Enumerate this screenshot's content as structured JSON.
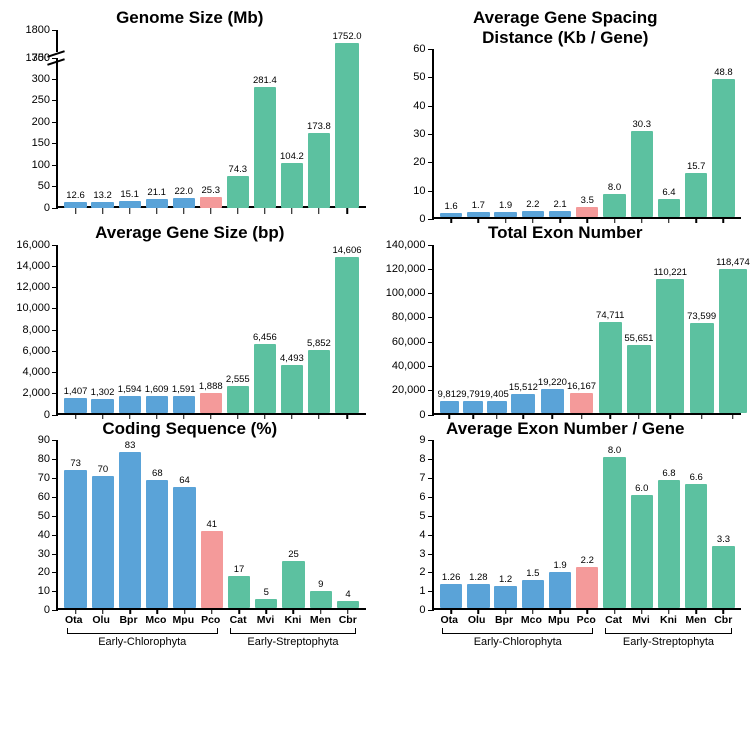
{
  "colors": {
    "blue": "#5aa3d8",
    "pink": "#f49a9a",
    "green": "#5cc1a0",
    "axis": "#000000",
    "bg": "#ffffff"
  },
  "fonts": {
    "title_size": 17,
    "tick_size": 11,
    "value_size": 9.5,
    "xaxis_size": 10.5,
    "family": "Arial"
  },
  "species": [
    "Ota",
    "Olu",
    "Bpr",
    "Mco",
    "Mpu",
    "Pco",
    "Cat",
    "Mvi",
    "Kni",
    "Men",
    "Cbr"
  ],
  "species_colors": [
    "blue",
    "blue",
    "blue",
    "blue",
    "blue",
    "pink",
    "green",
    "green",
    "green",
    "green",
    "green"
  ],
  "groups": [
    {
      "label": "Early-Chlorophyta",
      "count": 6
    },
    {
      "label": "Early-Streptophyta",
      "count": 5
    }
  ],
  "panels": [
    {
      "key": "genome_size",
      "title": "Genome Size (Mb)",
      "type": "bar-broken",
      "lower": {
        "ylim": [
          0,
          350
        ],
        "yticks": [
          0,
          50,
          100,
          150,
          200,
          250,
          300,
          350
        ]
      },
      "upper": {
        "ylim": [
          1700,
          1800
        ],
        "yticks": [
          1700,
          1800
        ]
      },
      "values": [
        12.6,
        13.2,
        15.1,
        21.1,
        22.0,
        25.3,
        74.3,
        281.4,
        104.2,
        173.8,
        1752.0
      ],
      "value_labels": [
        "12.6",
        "13.2",
        "15.1",
        "21.1",
        "22.0",
        "25.3",
        "74.3",
        "281.4",
        "104.2",
        "173.8",
        "1752.0"
      ],
      "show_xaxis": false
    },
    {
      "key": "gene_spacing",
      "title": "Average Gene Spacing\nDistance (Kb / Gene)",
      "type": "bar",
      "ylim": [
        0,
        60
      ],
      "yticks": [
        0,
        10,
        20,
        30,
        40,
        50,
        60
      ],
      "values": [
        1.6,
        1.7,
        1.9,
        2.2,
        2.1,
        3.5,
        8.0,
        30.3,
        6.4,
        15.7,
        48.8
      ],
      "value_labels": [
        "1.6",
        "1.7",
        "1.9",
        "2.2",
        "2.1",
        "3.5",
        "8.0",
        "30.3",
        "6.4",
        "15.7",
        "48.8"
      ],
      "show_xaxis": false
    },
    {
      "key": "gene_size",
      "title": "Average Gene Size (bp)",
      "type": "bar",
      "ylim": [
        0,
        16000
      ],
      "yticks": [
        0,
        2000,
        4000,
        6000,
        8000,
        10000,
        12000,
        14000,
        16000
      ],
      "tick_fmt": "comma",
      "values": [
        1407,
        1302,
        1594,
        1609,
        1591,
        1888,
        2555,
        6456,
        4493,
        5852,
        14606
      ],
      "value_labels": [
        "1,407",
        "1,302",
        "1,594",
        "1,609",
        "1,591",
        "1,888",
        "2,555",
        "6,456",
        "4,493",
        "5,852",
        "14,606"
      ],
      "show_xaxis": false
    },
    {
      "key": "exon_number",
      "title": "Total Exon Number",
      "type": "bar",
      "ylim": [
        0,
        140000
      ],
      "yticks": [
        0,
        20000,
        40000,
        60000,
        80000,
        100000,
        120000,
        140000
      ],
      "tick_fmt": "comma",
      "values": [
        9812,
        9791,
        9405,
        15512,
        19220,
        16167,
        74711,
        55651,
        110221,
        73599,
        118474
      ],
      "value_labels": [
        "9,812",
        "9,791",
        "9,405",
        "15,512",
        "19,220",
        "16,167",
        "74,711",
        "55,651",
        "110,221",
        "73,599",
        "118,474"
      ],
      "show_xaxis": false
    },
    {
      "key": "coding_seq",
      "title": "Coding Sequence (%)",
      "type": "bar",
      "ylim": [
        0,
        90
      ],
      "yticks": [
        0,
        10,
        20,
        30,
        40,
        50,
        60,
        70,
        80,
        90
      ],
      "values": [
        73,
        70,
        83,
        68,
        64,
        41,
        17,
        5,
        25,
        9,
        4
      ],
      "value_labels": [
        "73",
        "70",
        "83",
        "68",
        "64",
        "41",
        "17",
        "5",
        "25",
        "9",
        "4"
      ],
      "show_xaxis": true
    },
    {
      "key": "exon_per_gene",
      "title": "Average Exon Number / Gene",
      "type": "bar",
      "ylim": [
        0,
        9
      ],
      "yticks": [
        0,
        1,
        2,
        3,
        4,
        5,
        6,
        7,
        8,
        9
      ],
      "values": [
        1.26,
        1.28,
        1.2,
        1.5,
        1.9,
        2.2,
        8.0,
        6.0,
        6.8,
        6.6,
        3.3
      ],
      "value_labels": [
        "1.26",
        "1.28",
        "1.2",
        "1.5",
        "1.9",
        "2.2",
        "8.0",
        "6.0",
        "6.8",
        "6.6",
        "3.3"
      ],
      "show_xaxis": true
    }
  ]
}
